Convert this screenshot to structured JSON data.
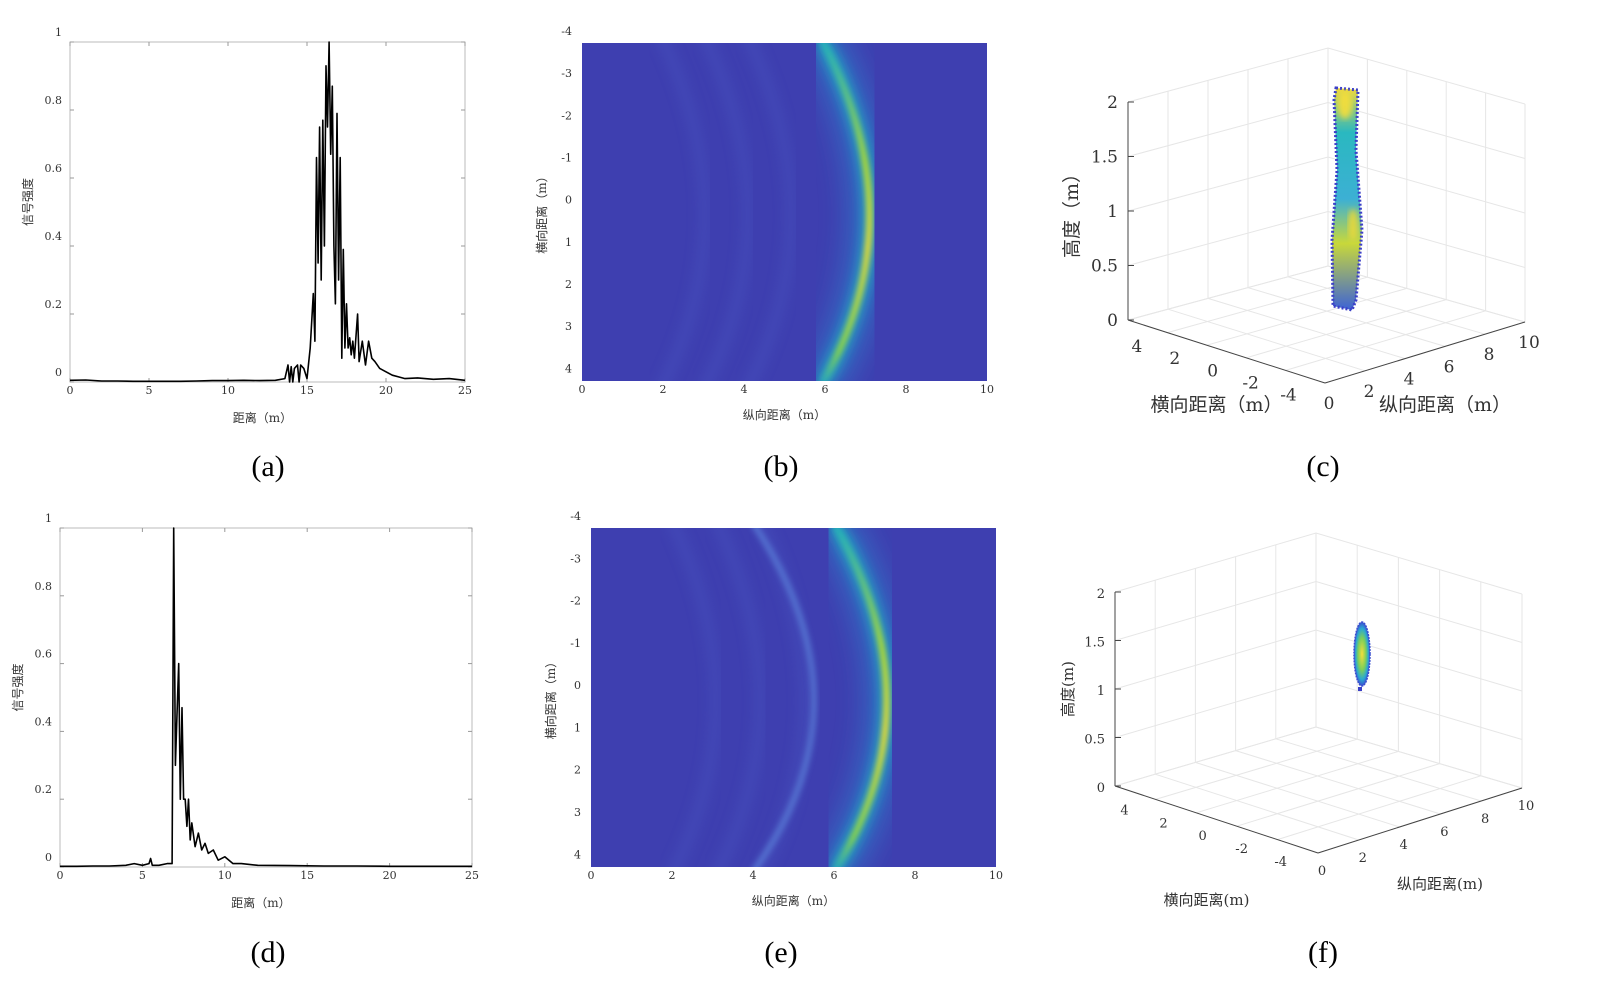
{
  "captions": [
    "(a)",
    "(b)",
    "(c)",
    "(d)",
    "(e)",
    "(f)"
  ],
  "colors": {
    "line": "#000000",
    "heat_low": "#3e3fb0",
    "heat_mid": "#1fa6c7",
    "heat_high": "#f0e130",
    "grid": "#e6e6e6"
  },
  "chart_data": [
    {
      "id": "a",
      "type": "line",
      "xlabel": "距离（m）",
      "ylabel": "信号强度",
      "xlim": [
        0,
        25
      ],
      "ylim": [
        0,
        1
      ],
      "xticks": [
        "0",
        "5",
        "10",
        "15",
        "20",
        "25"
      ],
      "yticks": [
        "0",
        "0.2",
        "0.4",
        "0.6",
        "0.8",
        "1"
      ],
      "series": [
        {
          "name": "signal",
          "x": [
            0,
            1,
            2,
            3,
            4,
            5,
            6,
            7,
            8,
            9,
            10,
            11,
            12,
            13,
            13.6,
            13.8,
            13.9,
            14.0,
            14.1,
            14.2,
            14.4,
            14.5,
            14.6,
            14.8,
            15.0,
            15.2,
            15.4,
            15.5,
            15.6,
            15.7,
            15.8,
            15.9,
            16.0,
            16.1,
            16.2,
            16.3,
            16.4,
            16.5,
            16.6,
            16.7,
            16.8,
            16.9,
            17.0,
            17.1,
            17.2,
            17.3,
            17.4,
            17.5,
            17.6,
            17.7,
            17.8,
            17.9,
            18.0,
            18.2,
            18.3,
            18.5,
            18.7,
            18.9,
            19.1,
            19.3,
            19.6,
            20.0,
            20.4,
            20.8,
            21.2,
            22,
            23,
            24,
            25
          ],
          "y": [
            0.005,
            0.006,
            0.003,
            0.003,
            0.002,
            0.002,
            0.002,
            0.002,
            0.003,
            0.004,
            0.004,
            0.005,
            0.004,
            0.005,
            0.01,
            0.05,
            0.0,
            0.045,
            0.0,
            0.04,
            0.05,
            0.0,
            0.05,
            0.04,
            0.01,
            0.1,
            0.26,
            0.12,
            0.66,
            0.35,
            0.75,
            0.3,
            0.77,
            0.4,
            0.93,
            0.75,
            1.0,
            0.67,
            0.87,
            0.4,
            0.23,
            0.79,
            0.3,
            0.66,
            0.07,
            0.39,
            0.1,
            0.23,
            0.1,
            0.13,
            0.08,
            0.12,
            0.07,
            0.2,
            0.06,
            0.12,
            0.05,
            0.12,
            0.07,
            0.06,
            0.04,
            0.03,
            0.02,
            0.015,
            0.01,
            0.012,
            0.008,
            0.01,
            0.005
          ]
        }
      ]
    },
    {
      "id": "b",
      "type": "heatmap",
      "xlabel": "纵向距离（m）",
      "ylabel": "横向距离（m）",
      "xlim": [
        0,
        10
      ],
      "ylim": [
        -4,
        4
      ],
      "xticks": [
        "0",
        "2",
        "4",
        "6",
        "8",
        "10"
      ],
      "yticks": [
        "-4",
        "-3",
        "-2",
        "-1",
        "0",
        "1",
        "2",
        "3",
        "4"
      ],
      "arcs": [
        {
          "peak_longitudinal_m": 7.1,
          "edge_longitudinal_m": 5.9,
          "intensity": 1.0
        }
      ]
    },
    {
      "id": "c",
      "type": "scatter3d",
      "xlabel": "横向距离（m）",
      "ylabel": "纵向距离（m）",
      "zlabel": "高度（m）",
      "lateral_ticks": [
        "4",
        "2",
        "0",
        "-2",
        "-4"
      ],
      "longitudinal_ticks": [
        "0",
        "2",
        "4",
        "6",
        "8",
        "10"
      ],
      "height_ticks": [
        "0",
        "0.5",
        "1",
        "1.5",
        "2"
      ],
      "cloud": {
        "height_range_m": [
          0.1,
          2.05
        ],
        "note_points": "vertical column"
      }
    },
    {
      "id": "d",
      "type": "line",
      "xlabel": "距离（m）",
      "ylabel": "信号强度",
      "xlim": [
        0,
        25
      ],
      "ylim": [
        0,
        1
      ],
      "xticks": [
        "0",
        "5",
        "10",
        "15",
        "20",
        "25"
      ],
      "yticks": [
        "0",
        "0.2",
        "0.4",
        "0.6",
        "0.8",
        "1"
      ],
      "series": [
        {
          "name": "signal",
          "x": [
            0,
            1,
            2,
            3,
            4,
            4.5,
            5,
            5.4,
            5.5,
            5.6,
            6,
            6.5,
            6.8,
            6.9,
            7.0,
            7.1,
            7.2,
            7.3,
            7.4,
            7.5,
            7.6,
            7.7,
            7.8,
            7.9,
            8.0,
            8.2,
            8.4,
            8.6,
            8.8,
            9.0,
            9.3,
            9.6,
            10,
            10.5,
            11,
            12,
            14,
            16,
            18,
            20,
            22,
            25
          ],
          "y": [
            0.002,
            0.002,
            0.003,
            0.003,
            0.005,
            0.01,
            0.005,
            0.01,
            0.025,
            0.005,
            0.005,
            0.01,
            0.01,
            1.0,
            0.3,
            0.45,
            0.6,
            0.2,
            0.47,
            0.2,
            0.2,
            0.12,
            0.2,
            0.08,
            0.13,
            0.06,
            0.1,
            0.05,
            0.07,
            0.04,
            0.05,
            0.02,
            0.03,
            0.01,
            0.01,
            0.005,
            0.004,
            0.003,
            0.003,
            0.002,
            0.002,
            0.002
          ]
        }
      ]
    },
    {
      "id": "e",
      "type": "heatmap",
      "xlabel": "纵向距离（m）",
      "ylabel": "横向距离（m）",
      "xlim": [
        0,
        10
      ],
      "ylim": [
        -4,
        4
      ],
      "xticks": [
        "0",
        "2",
        "4",
        "6",
        "8",
        "10"
      ],
      "yticks": [
        "-4",
        "-3",
        "-2",
        "-1",
        "0",
        "1",
        "2",
        "3",
        "4"
      ],
      "arcs": [
        {
          "peak_longitudinal_m": 7.3,
          "edge_longitudinal_m": 6.0,
          "intensity": 1.0
        },
        {
          "peak_longitudinal_m": 5.5,
          "edge_longitudinal_m": 4.0,
          "intensity": 0.3
        }
      ]
    },
    {
      "id": "f",
      "type": "scatter3d",
      "xlabel": "横向距离(m)",
      "ylabel": "纵向距离(m)",
      "zlabel": "高度(m)",
      "lateral_ticks": [
        "4",
        "2",
        "0",
        "-2",
        "-4"
      ],
      "longitudinal_ticks": [
        "0",
        "2",
        "4",
        "6",
        "8",
        "10"
      ],
      "height_ticks": [
        "0",
        "0.5",
        "1",
        "1.5",
        "2"
      ],
      "cloud": {
        "height_range_m": [
          1.0,
          1.6
        ],
        "note_points": "compact cluster"
      }
    }
  ]
}
